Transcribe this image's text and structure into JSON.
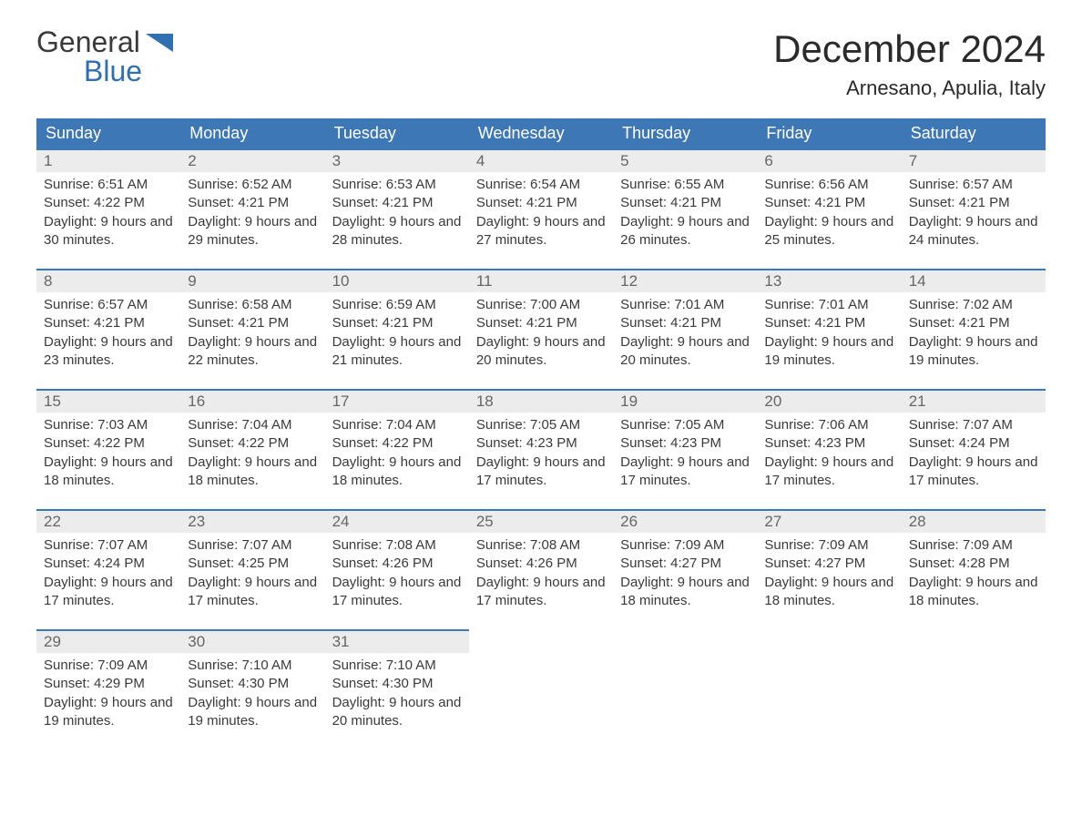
{
  "logo": {
    "word1": "General",
    "word2": "Blue"
  },
  "title": "December 2024",
  "location": "Arnesano, Apulia, Italy",
  "colors": {
    "header_bg": "#3e77b5",
    "header_text": "#ffffff",
    "daynum_bg": "#ececec",
    "daynum_border": "#3e77b5",
    "body_text": "#3a3a3a",
    "logo_blue": "#2f6fb2",
    "page_bg": "#ffffff"
  },
  "daynames": [
    "Sunday",
    "Monday",
    "Tuesday",
    "Wednesday",
    "Thursday",
    "Friday",
    "Saturday"
  ],
  "labels": {
    "sunrise": "Sunrise:",
    "sunset": "Sunset:",
    "daylight": "Daylight:"
  },
  "weeks": [
    [
      {
        "num": "1",
        "sunrise": "6:51 AM",
        "sunset": "4:22 PM",
        "daylight": "9 hours and 30 minutes."
      },
      {
        "num": "2",
        "sunrise": "6:52 AM",
        "sunset": "4:21 PM",
        "daylight": "9 hours and 29 minutes."
      },
      {
        "num": "3",
        "sunrise": "6:53 AM",
        "sunset": "4:21 PM",
        "daylight": "9 hours and 28 minutes."
      },
      {
        "num": "4",
        "sunrise": "6:54 AM",
        "sunset": "4:21 PM",
        "daylight": "9 hours and 27 minutes."
      },
      {
        "num": "5",
        "sunrise": "6:55 AM",
        "sunset": "4:21 PM",
        "daylight": "9 hours and 26 minutes."
      },
      {
        "num": "6",
        "sunrise": "6:56 AM",
        "sunset": "4:21 PM",
        "daylight": "9 hours and 25 minutes."
      },
      {
        "num": "7",
        "sunrise": "6:57 AM",
        "sunset": "4:21 PM",
        "daylight": "9 hours and 24 minutes."
      }
    ],
    [
      {
        "num": "8",
        "sunrise": "6:57 AM",
        "sunset": "4:21 PM",
        "daylight": "9 hours and 23 minutes."
      },
      {
        "num": "9",
        "sunrise": "6:58 AM",
        "sunset": "4:21 PM",
        "daylight": "9 hours and 22 minutes."
      },
      {
        "num": "10",
        "sunrise": "6:59 AM",
        "sunset": "4:21 PM",
        "daylight": "9 hours and 21 minutes."
      },
      {
        "num": "11",
        "sunrise": "7:00 AM",
        "sunset": "4:21 PM",
        "daylight": "9 hours and 20 minutes."
      },
      {
        "num": "12",
        "sunrise": "7:01 AM",
        "sunset": "4:21 PM",
        "daylight": "9 hours and 20 minutes."
      },
      {
        "num": "13",
        "sunrise": "7:01 AM",
        "sunset": "4:21 PM",
        "daylight": "9 hours and 19 minutes."
      },
      {
        "num": "14",
        "sunrise": "7:02 AM",
        "sunset": "4:21 PM",
        "daylight": "9 hours and 19 minutes."
      }
    ],
    [
      {
        "num": "15",
        "sunrise": "7:03 AM",
        "sunset": "4:22 PM",
        "daylight": "9 hours and 18 minutes."
      },
      {
        "num": "16",
        "sunrise": "7:04 AM",
        "sunset": "4:22 PM",
        "daylight": "9 hours and 18 minutes."
      },
      {
        "num": "17",
        "sunrise": "7:04 AM",
        "sunset": "4:22 PM",
        "daylight": "9 hours and 18 minutes."
      },
      {
        "num": "18",
        "sunrise": "7:05 AM",
        "sunset": "4:23 PM",
        "daylight": "9 hours and 17 minutes."
      },
      {
        "num": "19",
        "sunrise": "7:05 AM",
        "sunset": "4:23 PM",
        "daylight": "9 hours and 17 minutes."
      },
      {
        "num": "20",
        "sunrise": "7:06 AM",
        "sunset": "4:23 PM",
        "daylight": "9 hours and 17 minutes."
      },
      {
        "num": "21",
        "sunrise": "7:07 AM",
        "sunset": "4:24 PM",
        "daylight": "9 hours and 17 minutes."
      }
    ],
    [
      {
        "num": "22",
        "sunrise": "7:07 AM",
        "sunset": "4:24 PM",
        "daylight": "9 hours and 17 minutes."
      },
      {
        "num": "23",
        "sunrise": "7:07 AM",
        "sunset": "4:25 PM",
        "daylight": "9 hours and 17 minutes."
      },
      {
        "num": "24",
        "sunrise": "7:08 AM",
        "sunset": "4:26 PM",
        "daylight": "9 hours and 17 minutes."
      },
      {
        "num": "25",
        "sunrise": "7:08 AM",
        "sunset": "4:26 PM",
        "daylight": "9 hours and 17 minutes."
      },
      {
        "num": "26",
        "sunrise": "7:09 AM",
        "sunset": "4:27 PM",
        "daylight": "9 hours and 18 minutes."
      },
      {
        "num": "27",
        "sunrise": "7:09 AM",
        "sunset": "4:27 PM",
        "daylight": "9 hours and 18 minutes."
      },
      {
        "num": "28",
        "sunrise": "7:09 AM",
        "sunset": "4:28 PM",
        "daylight": "9 hours and 18 minutes."
      }
    ],
    [
      {
        "num": "29",
        "sunrise": "7:09 AM",
        "sunset": "4:29 PM",
        "daylight": "9 hours and 19 minutes."
      },
      {
        "num": "30",
        "sunrise": "7:10 AM",
        "sunset": "4:30 PM",
        "daylight": "9 hours and 19 minutes."
      },
      {
        "num": "31",
        "sunrise": "7:10 AM",
        "sunset": "4:30 PM",
        "daylight": "9 hours and 20 minutes."
      },
      null,
      null,
      null,
      null
    ]
  ]
}
